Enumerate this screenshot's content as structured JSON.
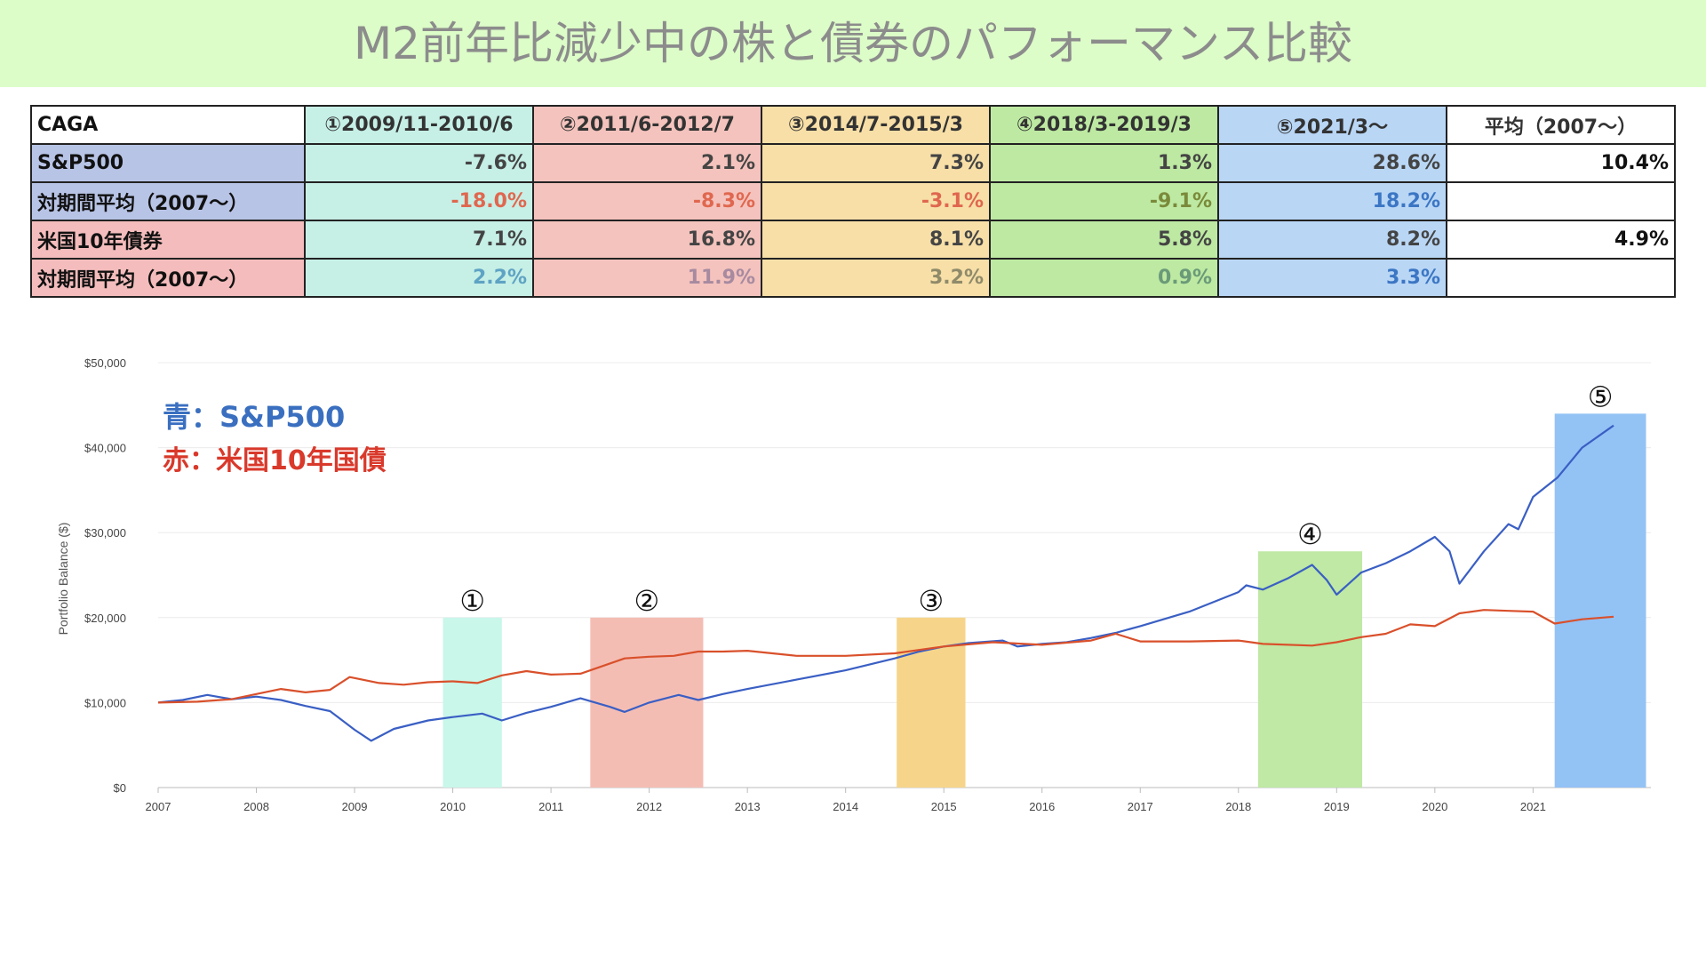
{
  "page_title": "M2前年比減少中の株と債券のパフォーマンス比較",
  "table": {
    "corner": "CAGA",
    "columns": [
      {
        "label": "①2009/11-2010/6",
        "bg": "#c6efe6"
      },
      {
        "label": "②2011/6-2012/7",
        "bg": "#f4c3bd"
      },
      {
        "label": "③2014/7-2015/3",
        "bg": "#f7dfa7"
      },
      {
        "label": "④2018/3-2019/3",
        "bg": "#bde9a2"
      },
      {
        "label": "⑤2021/3〜",
        "bg": "#b9d6f5"
      },
      {
        "label": "平均（2007〜）",
        "bg": "#ffffff"
      }
    ],
    "rows": [
      {
        "label": "S&P500",
        "label_bg": "#b8c4e6",
        "values": [
          "-7.6%",
          "2.1%",
          "7.3%",
          "1.3%",
          "28.6%",
          "10.4%"
        ],
        "colors": [
          "#444444",
          "#444444",
          "#444444",
          "#444444",
          "#444444",
          "#111111"
        ]
      },
      {
        "label": "対期間平均（2007〜）",
        "label_bg": "#b8c4e6",
        "values": [
          "-18.0%",
          "-8.3%",
          "-3.1%",
          "-9.1%",
          "18.2%",
          ""
        ],
        "colors": [
          "#e0674f",
          "#e0674f",
          "#e0674f",
          "#7a8a3a",
          "#3b76c4",
          "#111111"
        ]
      },
      {
        "label": "米国10年債券",
        "label_bg": "#f4bcbc",
        "values": [
          "7.1%",
          "16.8%",
          "8.1%",
          "5.8%",
          "8.2%",
          "4.9%"
        ],
        "colors": [
          "#444444",
          "#444444",
          "#444444",
          "#444444",
          "#444444",
          "#111111"
        ]
      },
      {
        "label": "対期間平均（2007〜）",
        "label_bg": "#f4bcbc",
        "values": [
          "2.2%",
          "11.9%",
          "3.2%",
          "0.9%",
          "3.3%",
          ""
        ],
        "colors": [
          "#5ea3c4",
          "#a78aa0",
          "#8f8a6a",
          "#6a9a78",
          "#3b76c4",
          "#111111"
        ]
      }
    ]
  },
  "legend": {
    "blue": {
      "label": "青：S&P500",
      "color": "#3a6fc0"
    },
    "red": {
      "label": "赤：米国10年国債",
      "color": "#d9392b"
    }
  },
  "chart_data": {
    "type": "line",
    "ylabel": "Portfolio Balance ($)",
    "xlabel": "",
    "xlim": [
      2007,
      2022.2
    ],
    "ylim": [
      0,
      50000
    ],
    "x_ticks": [
      "2007",
      "2008",
      "2009",
      "2010",
      "2011",
      "2012",
      "2013",
      "2014",
      "2015",
      "2016",
      "2017",
      "2018",
      "2019",
      "2020",
      "2021"
    ],
    "y_ticks": [
      {
        "value": 0,
        "label": "$0"
      },
      {
        "value": 10000,
        "label": "$10,000"
      },
      {
        "value": 20000,
        "label": "$20,000"
      },
      {
        "value": 30000,
        "label": "$30,000"
      },
      {
        "value": 40000,
        "label": "$40,000"
      },
      {
        "value": 50000,
        "label": "$50,000"
      }
    ],
    "periods": [
      {
        "label": "①",
        "start": 2009.9,
        "end": 2010.5,
        "top": 20000,
        "color": "#c9f7ea"
      },
      {
        "label": "②",
        "start": 2011.4,
        "end": 2012.55,
        "top": 20000,
        "color": "#f4bdb4"
      },
      {
        "label": "③",
        "start": 2014.52,
        "end": 2015.22,
        "top": 20000,
        "color": "#f6d58b"
      },
      {
        "label": "④",
        "start": 2018.2,
        "end": 2019.26,
        "top": 27800,
        "color": "#bfe9a4"
      },
      {
        "label": "⑤",
        "start": 2021.22,
        "end": 2022.15,
        "top": 44000,
        "color": "#93c2f5"
      }
    ],
    "series": [
      {
        "name": "青：S&P500",
        "color": "#3a5fc4",
        "points": [
          [
            2007.0,
            10000
          ],
          [
            2007.25,
            10300
          ],
          [
            2007.5,
            10900
          ],
          [
            2007.75,
            10400
          ],
          [
            2008.0,
            10700
          ],
          [
            2008.25,
            10300
          ],
          [
            2008.5,
            9600
          ],
          [
            2008.75,
            9000
          ],
          [
            2009.0,
            6800
          ],
          [
            2009.17,
            5500
          ],
          [
            2009.4,
            6900
          ],
          [
            2009.75,
            7900
          ],
          [
            2010.0,
            8300
          ],
          [
            2010.3,
            8700
          ],
          [
            2010.5,
            7900
          ],
          [
            2010.75,
            8800
          ],
          [
            2011.0,
            9500
          ],
          [
            2011.3,
            10500
          ],
          [
            2011.6,
            9500
          ],
          [
            2011.75,
            8900
          ],
          [
            2012.0,
            10000
          ],
          [
            2012.3,
            10900
          ],
          [
            2012.5,
            10300
          ],
          [
            2012.75,
            11000
          ],
          [
            2013.0,
            11600
          ],
          [
            2013.5,
            12700
          ],
          [
            2014.0,
            13800
          ],
          [
            2014.5,
            15200
          ],
          [
            2014.75,
            16000
          ],
          [
            2015.0,
            16600
          ],
          [
            2015.25,
            17000
          ],
          [
            2015.6,
            17300
          ],
          [
            2015.75,
            16600
          ],
          [
            2016.0,
            16900
          ],
          [
            2016.25,
            17100
          ],
          [
            2016.5,
            17600
          ],
          [
            2016.75,
            18200
          ],
          [
            2017.0,
            19000
          ],
          [
            2017.5,
            20700
          ],
          [
            2018.0,
            23000
          ],
          [
            2018.08,
            23800
          ],
          [
            2018.25,
            23300
          ],
          [
            2018.5,
            24600
          ],
          [
            2018.75,
            26200
          ],
          [
            2018.9,
            24400
          ],
          [
            2019.0,
            22700
          ],
          [
            2019.25,
            25300
          ],
          [
            2019.5,
            26400
          ],
          [
            2019.75,
            27800
          ],
          [
            2020.0,
            29500
          ],
          [
            2020.15,
            27800
          ],
          [
            2020.25,
            24000
          ],
          [
            2020.5,
            27800
          ],
          [
            2020.75,
            31000
          ],
          [
            2020.85,
            30400
          ],
          [
            2021.0,
            34200
          ],
          [
            2021.25,
            36500
          ],
          [
            2021.5,
            40000
          ],
          [
            2021.82,
            42600
          ]
        ]
      },
      {
        "name": "赤：米国10年国債",
        "color": "#d9502b",
        "points": [
          [
            2007.0,
            10000
          ],
          [
            2007.4,
            10100
          ],
          [
            2007.75,
            10400
          ],
          [
            2008.0,
            11000
          ],
          [
            2008.25,
            11600
          ],
          [
            2008.5,
            11200
          ],
          [
            2008.75,
            11500
          ],
          [
            2008.95,
            13000
          ],
          [
            2009.25,
            12300
          ],
          [
            2009.5,
            12100
          ],
          [
            2009.75,
            12400
          ],
          [
            2010.0,
            12500
          ],
          [
            2010.25,
            12300
          ],
          [
            2010.5,
            13200
          ],
          [
            2010.75,
            13700
          ],
          [
            2011.0,
            13300
          ],
          [
            2011.3,
            13400
          ],
          [
            2011.75,
            15200
          ],
          [
            2012.0,
            15400
          ],
          [
            2012.25,
            15500
          ],
          [
            2012.5,
            16000
          ],
          [
            2012.75,
            16000
          ],
          [
            2013.0,
            16100
          ],
          [
            2013.5,
            15500
          ],
          [
            2014.0,
            15500
          ],
          [
            2014.5,
            15800
          ],
          [
            2015.0,
            16600
          ],
          [
            2015.5,
            17100
          ],
          [
            2016.0,
            16800
          ],
          [
            2016.5,
            17300
          ],
          [
            2016.75,
            18100
          ],
          [
            2017.0,
            17200
          ],
          [
            2017.5,
            17200
          ],
          [
            2018.0,
            17300
          ],
          [
            2018.25,
            16900
          ],
          [
            2018.75,
            16700
          ],
          [
            2019.0,
            17100
          ],
          [
            2019.25,
            17700
          ],
          [
            2019.5,
            18100
          ],
          [
            2019.75,
            19200
          ],
          [
            2020.0,
            19000
          ],
          [
            2020.25,
            20500
          ],
          [
            2020.5,
            20900
          ],
          [
            2020.75,
            20800
          ],
          [
            2021.0,
            20700
          ],
          [
            2021.22,
            19300
          ],
          [
            2021.5,
            19800
          ],
          [
            2021.82,
            20100
          ]
        ]
      }
    ]
  }
}
